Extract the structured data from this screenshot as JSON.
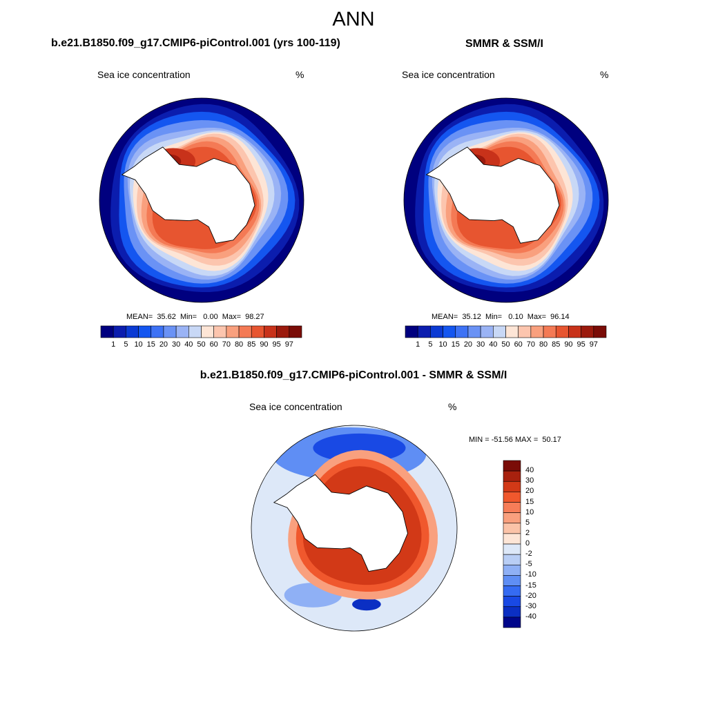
{
  "title": "ANN",
  "panels": [
    {
      "title": "b.e21.B1850.f09_g17.CMIP6-piControl.001 (yrs 100-119)",
      "variable": "Sea ice concentration",
      "units": "%",
      "stats": "MEAN=  35.62  Min=   0.00  Max=  98.27"
    },
    {
      "title": "SMMR & SSM/I",
      "variable": "Sea ice concentration",
      "units": "%",
      "stats": "MEAN=  35.12  Min=   0.10  Max=  96.14"
    },
    {
      "title": "b.e21.B1850.f09_g17.CMIP6-piControl.001 - SMMR & SSM/I",
      "variable": "Sea ice concentration",
      "units": "%",
      "stats": "MIN = -51.56 MAX =  50.17"
    }
  ],
  "colorbar_concentration": {
    "ticks": [
      "1",
      "5",
      "10",
      "15",
      "20",
      "30",
      "40",
      "50",
      "60",
      "70",
      "80",
      "85",
      "90",
      "95",
      "97"
    ],
    "colors": [
      "#00007f",
      "#0b1dae",
      "#0b3ad3",
      "#1456f0",
      "#3d72f5",
      "#6a92f5",
      "#9ab3f5",
      "#c8d8f6",
      "#fde5d6",
      "#fcc5ae",
      "#f9a07e",
      "#f47a55",
      "#e75530",
      "#c8321a",
      "#9b1a0d",
      "#7a0c07"
    ]
  },
  "colorbar_difference": {
    "ticks": [
      "40",
      "30",
      "20",
      "15",
      "10",
      "5",
      "2",
      "0",
      "-2",
      "-5",
      "-10",
      "-15",
      "-20",
      "-30",
      "-40"
    ],
    "colors": [
      "#7a0c07",
      "#a8210e",
      "#d23917",
      "#f0582d",
      "#f67d58",
      "#f9a07e",
      "#fbc3a8",
      "#fde5d6",
      "#dde8f8",
      "#b9cef5",
      "#8fb0f5",
      "#5f8ef4",
      "#356bf2",
      "#1949e4",
      "#0b2fc3",
      "#00068a"
    ]
  }
}
